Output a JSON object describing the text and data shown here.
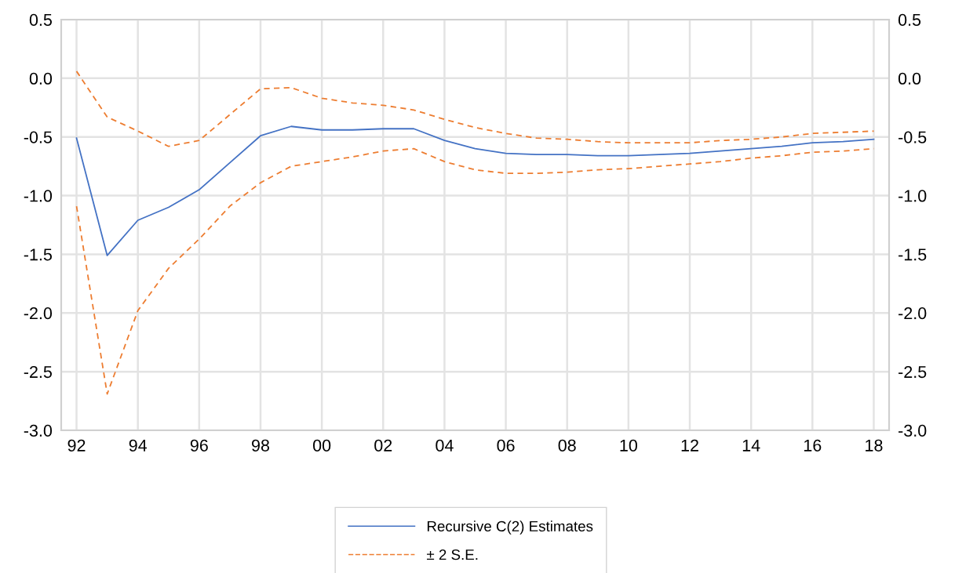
{
  "chart_data": {
    "type": "line",
    "x": [
      1992,
      1993,
      1994,
      1995,
      1996,
      1997,
      1998,
      1999,
      2000,
      2001,
      2002,
      2003,
      2004,
      2005,
      2006,
      2007,
      2008,
      2009,
      2010,
      2011,
      2012,
      2013,
      2014,
      2015,
      2016,
      2017,
      2018
    ],
    "series": [
      {
        "name": "Recursive C(2) Estimates",
        "color": "#4472c4",
        "line_style": "solid",
        "values": [
          -0.51,
          -1.51,
          -1.21,
          -1.1,
          -0.95,
          -0.72,
          -0.49,
          -0.41,
          -0.44,
          -0.44,
          -0.43,
          -0.43,
          -0.53,
          -0.6,
          -0.64,
          -0.65,
          -0.65,
          -0.66,
          -0.66,
          -0.65,
          -0.64,
          -0.62,
          -0.6,
          -0.58,
          -0.55,
          -0.54,
          -0.52
        ]
      },
      {
        "name": "± 2 S.E.",
        "color": "#ed7d31",
        "line_style": "dashed",
        "values": [
          0.06,
          -0.33,
          -0.45,
          -0.58,
          -0.53,
          -0.31,
          -0.09,
          -0.08,
          -0.17,
          -0.21,
          -0.23,
          -0.27,
          -0.35,
          -0.42,
          -0.47,
          -0.51,
          -0.52,
          -0.54,
          -0.55,
          -0.55,
          -0.55,
          -0.53,
          -0.52,
          -0.5,
          -0.47,
          -0.46,
          -0.45
        ]
      },
      {
        "color": "#ed7d31",
        "line_style": "dashed",
        "values": [
          -1.09,
          -2.69,
          -1.98,
          -1.62,
          -1.37,
          -1.09,
          -0.89,
          -0.75,
          -0.71,
          -0.67,
          -0.62,
          -0.6,
          -0.71,
          -0.78,
          -0.81,
          -0.81,
          -0.8,
          -0.78,
          -0.77,
          -0.75,
          -0.73,
          -0.71,
          -0.68,
          -0.66,
          -0.63,
          -0.62,
          -0.6
        ]
      }
    ],
    "xlim": [
      1991.5,
      2018.5
    ],
    "xticks": [
      {
        "value": 1992,
        "label": "92"
      },
      {
        "value": 1994,
        "label": "94"
      },
      {
        "value": 1996,
        "label": "96"
      },
      {
        "value": 1998,
        "label": "98"
      },
      {
        "value": 2000,
        "label": "00"
      },
      {
        "value": 2002,
        "label": "02"
      },
      {
        "value": 2004,
        "label": "04"
      },
      {
        "value": 2006,
        "label": "06"
      },
      {
        "value": 2008,
        "label": "08"
      },
      {
        "value": 2010,
        "label": "10"
      },
      {
        "value": 2012,
        "label": "12"
      },
      {
        "value": 2014,
        "label": "14"
      },
      {
        "value": 2016,
        "label": "16"
      },
      {
        "value": 2018,
        "label": "18"
      }
    ],
    "ylim": [
      -3.0,
      0.5
    ],
    "yticks": [
      {
        "value": 0.5,
        "label": "0.5"
      },
      {
        "value": 0.0,
        "label": "0.0"
      },
      {
        "value": -0.5,
        "label": "-0.5"
      },
      {
        "value": -1.0,
        "label": "-1.0"
      },
      {
        "value": -1.5,
        "label": "-1.5"
      },
      {
        "value": -2.0,
        "label": "-2.0"
      },
      {
        "value": -2.5,
        "label": "-2.5"
      },
      {
        "value": -3.0,
        "label": "-3.0"
      }
    ],
    "y2lim": [
      -3.0,
      0.5
    ],
    "y2ticks": [
      {
        "value": 0.5,
        "label": "0.5"
      },
      {
        "value": 0.0,
        "label": "0.0"
      },
      {
        "value": -0.5,
        "label": "-0.5"
      },
      {
        "value": -1.0,
        "label": "-1.0"
      },
      {
        "value": -1.5,
        "label": "-1.5"
      },
      {
        "value": -2.0,
        "label": "-2.0"
      },
      {
        "value": -2.5,
        "label": "-2.5"
      },
      {
        "value": -3.0,
        "label": "-3.0"
      }
    ],
    "grid": true,
    "legend": "bottom",
    "marker": "none"
  }
}
